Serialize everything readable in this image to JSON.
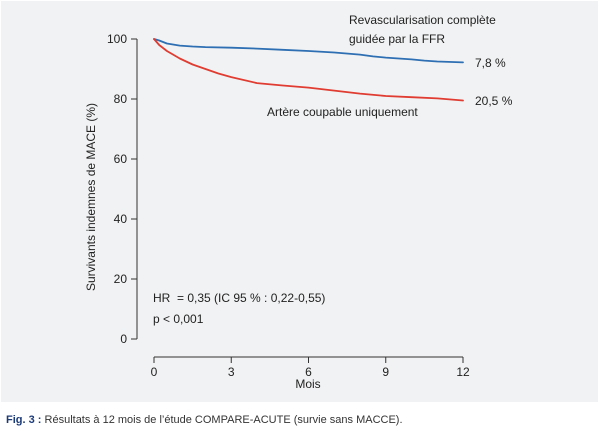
{
  "chart_data": {
    "type": "line",
    "xlabel": "Mois",
    "ylabel": "Survivants indemnes de MACE (%)",
    "xlim": [
      0,
      12
    ],
    "ylim": [
      0,
      100
    ],
    "x_ticks": [
      "0",
      "3",
      "6",
      "9",
      "12"
    ],
    "y_ticks": [
      "0",
      "20",
      "40",
      "60",
      "80",
      "100"
    ],
    "grid": false,
    "legend": "none",
    "series": [
      {
        "name_lines": [
          "Revascularisation complète",
          "guidée par la FFR"
        ],
        "end_label": "7,8 %",
        "color": "#2e6fb3",
        "x": [
          0,
          0.2,
          0.5,
          1,
          1.5,
          2,
          3,
          4,
          5,
          6,
          7,
          8,
          8.5,
          9,
          10,
          10.5,
          11,
          12
        ],
        "y": [
          100,
          99.5,
          98.5,
          97.8,
          97.5,
          97.3,
          97.1,
          96.8,
          96.4,
          96.0,
          95.5,
          94.8,
          94.2,
          93.8,
          93.2,
          92.8,
          92.5,
          92.2
        ]
      },
      {
        "name_lines": [
          "Artère coupable uniquement"
        ],
        "end_label": "20,5 %",
        "color": "#e03c31",
        "x": [
          0,
          0.2,
          0.5,
          1,
          1.5,
          2,
          2.5,
          3,
          4,
          5,
          6,
          7,
          8,
          9,
          10,
          11,
          12
        ],
        "y": [
          100,
          98.0,
          96.0,
          93.5,
          91.5,
          90.0,
          88.5,
          87.3,
          85.3,
          84.5,
          83.8,
          82.8,
          81.8,
          81.0,
          80.6,
          80.2,
          79.5
        ]
      }
    ],
    "annotations": [
      "HR  = 0,35 (IC 95 % : 0,22-0,55)",
      "p < 0,001"
    ]
  },
  "caption": {
    "label": "Fig. 3 :",
    "text": " Résultats à 12 mois de l’étude COMPARE-ACUTE (survie sans MACCE)."
  }
}
